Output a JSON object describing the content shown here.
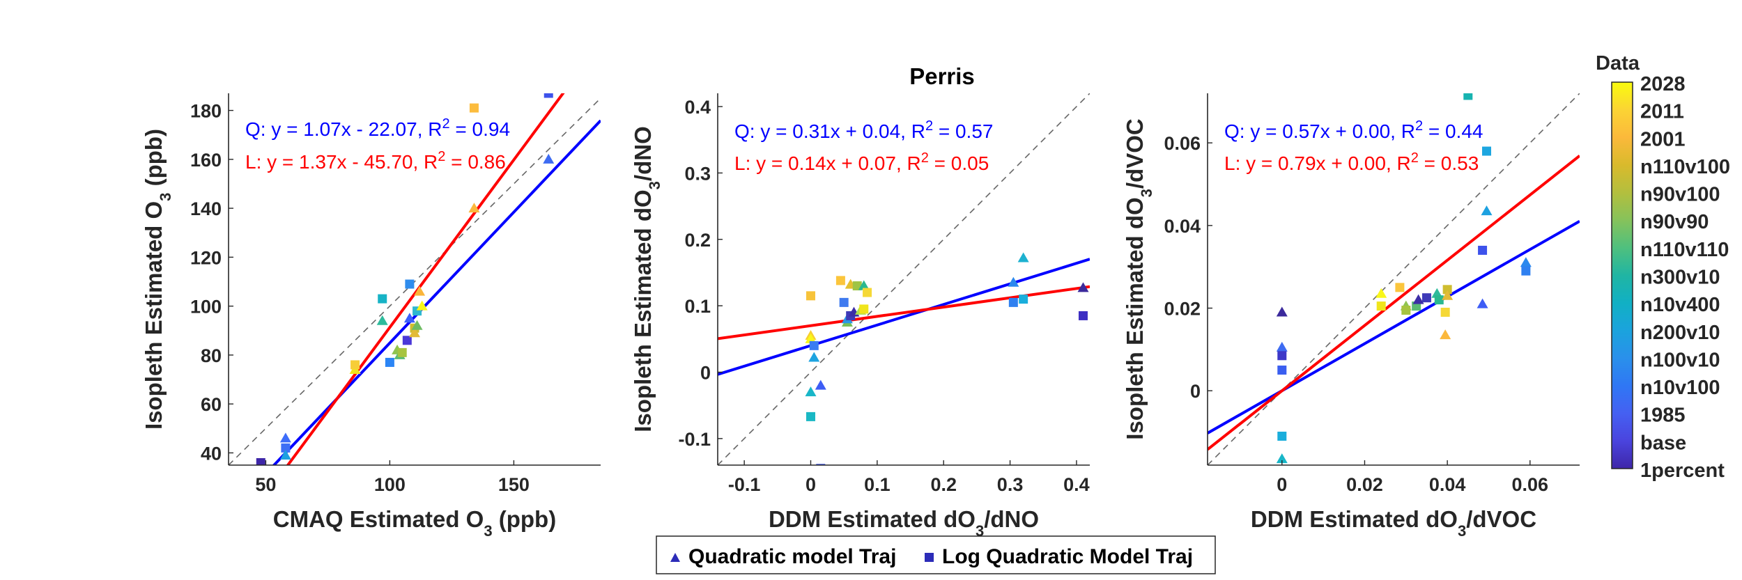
{
  "figure_title": "Perris",
  "chart_data": [
    {
      "type": "scatter",
      "xlabel": "CMAQ Estimated O_3 (ppb)",
      "ylabel": "Isopleth Estimated O_3 (ppb)",
      "xlim": [
        35,
        185
      ],
      "ylim": [
        35,
        187
      ],
      "xticks": [
        50,
        100,
        150
      ],
      "yticks": [
        40,
        60,
        80,
        100,
        120,
        140,
        160,
        180
      ],
      "xtick_labels": [
        "50",
        "100",
        "150"
      ],
      "ytick_labels": [
        "40",
        "60",
        "80",
        "100",
        "120",
        "140",
        "160",
        "180"
      ],
      "annotations": [
        {
          "prefix": "Q: y = 1.07x - 22.07, R",
          "sup": "2",
          "suffix": " = 0.94",
          "color": "#0000ff"
        },
        {
          "prefix": "L: y = 1.37x - 45.70, R",
          "sup": "2",
          "suffix": " = 0.86",
          "color": "#ff0000"
        }
      ],
      "fits": [
        {
          "label": "Q",
          "slope": 1.07,
          "intercept": -22.07,
          "color": "#0000ff"
        },
        {
          "label": "L",
          "slope": 1.37,
          "intercept": -45.7,
          "color": "#ff0000"
        }
      ],
      "points": [
        {
          "x": 48,
          "y": 36,
          "marker": "square",
          "color": "#3e26a8"
        },
        {
          "x": 58,
          "y": 46,
          "marker": "triangle",
          "color": "#3d6dfa"
        },
        {
          "x": 58,
          "y": 42,
          "marker": "square",
          "color": "#3e6ff5"
        },
        {
          "x": 58,
          "y": 39,
          "marker": "triangle",
          "color": "#1da1e0"
        },
        {
          "x": 86,
          "y": 74,
          "marker": "triangle",
          "color": "#f0e51c"
        },
        {
          "x": 86,
          "y": 76,
          "marker": "square",
          "color": "#f7cd38"
        },
        {
          "x": 97,
          "y": 103,
          "marker": "square",
          "color": "#17b3c6"
        },
        {
          "x": 97,
          "y": 94,
          "marker": "triangle",
          "color": "#2ebb9c"
        },
        {
          "x": 100,
          "y": 77,
          "marker": "square",
          "color": "#2b85f5"
        },
        {
          "x": 103,
          "y": 82,
          "marker": "triangle",
          "color": "#8fc450"
        },
        {
          "x": 104,
          "y": 80,
          "marker": "triangle",
          "color": "#5abb73"
        },
        {
          "x": 105,
          "y": 81,
          "marker": "square",
          "color": "#a7c440"
        },
        {
          "x": 107,
          "y": 86,
          "marker": "square",
          "color": "#4a38d8"
        },
        {
          "x": 108,
          "y": 109,
          "marker": "square",
          "color": "#2f8ced"
        },
        {
          "x": 108,
          "y": 95,
          "marker": "triangle",
          "color": "#3b5ffc"
        },
        {
          "x": 110,
          "y": 91,
          "marker": "square",
          "color": "#cfbd30"
        },
        {
          "x": 110,
          "y": 89,
          "marker": "triangle",
          "color": "#e2bb38"
        },
        {
          "x": 111,
          "y": 92,
          "marker": "triangle",
          "color": "#6fbc63"
        },
        {
          "x": 111,
          "y": 98,
          "marker": "square",
          "color": "#2db8d0"
        },
        {
          "x": 112,
          "y": 106,
          "marker": "triangle",
          "color": "#fab53a"
        },
        {
          "x": 113,
          "y": 100,
          "marker": "triangle",
          "color": "#f8f71a"
        },
        {
          "x": 134,
          "y": 140,
          "marker": "triangle",
          "color": "#fbb83c"
        },
        {
          "x": 134,
          "y": 181,
          "marker": "square",
          "color": "#fcbc3e"
        },
        {
          "x": 164,
          "y": 187,
          "marker": "square",
          "color": "#3d52eb"
        },
        {
          "x": 164,
          "y": 160,
          "marker": "triangle",
          "color": "#3d6bf2"
        }
      ]
    },
    {
      "type": "scatter",
      "title": "Perris",
      "xlabel": "DDM Estimated dO_3/dNO_x",
      "ylabel": "Isopleth Estimated dO_3/dNO_x",
      "xlim": [
        -0.14,
        0.42
      ],
      "ylim": [
        -0.14,
        0.42
      ],
      "xticks": [
        -0.1,
        0,
        0.1,
        0.2,
        0.3,
        0.4
      ],
      "yticks": [
        -0.1,
        0,
        0.1,
        0.2,
        0.3,
        0.4
      ],
      "xtick_labels": [
        "-0.1",
        "0",
        "0.1",
        "0.2",
        "0.3",
        "0.4"
      ],
      "ytick_labels": [
        "-0.1",
        "0",
        "0.1",
        "0.2",
        "0.3",
        "0.4"
      ],
      "annotations": [
        {
          "prefix": "Q: y = 0.31x + 0.04, R",
          "sup": "2",
          "suffix": " = 0.57",
          "color": "#0000ff"
        },
        {
          "prefix": "L: y = 0.14x + 0.07, R",
          "sup": "2",
          "suffix": " = 0.05",
          "color": "#ff0000"
        }
      ],
      "fits": [
        {
          "label": "Q",
          "slope": 0.31,
          "intercept": 0.04,
          "color": "#0000ff"
        },
        {
          "label": "L",
          "slope": 0.14,
          "intercept": 0.07,
          "color": "#ff0000"
        }
      ],
      "points": [
        {
          "x": 0.0,
          "y": 0.115,
          "marker": "square",
          "color": "#f7c33a"
        },
        {
          "x": 0.0,
          "y": 0.055,
          "marker": "triangle",
          "color": "#f8cf30"
        },
        {
          "x": 0.0,
          "y": 0.05,
          "marker": "triangle",
          "color": "#f9f71a"
        },
        {
          "x": 0.005,
          "y": 0.04,
          "marker": "square",
          "color": "#3a7cf3"
        },
        {
          "x": 0.005,
          "y": 0.022,
          "marker": "triangle",
          "color": "#1da3e0"
        },
        {
          "x": 0.0,
          "y": -0.03,
          "marker": "triangle",
          "color": "#18b6c8"
        },
        {
          "x": 0.0,
          "y": -0.067,
          "marker": "square",
          "color": "#1ab8c4"
        },
        {
          "x": 0.015,
          "y": -0.02,
          "marker": "triangle",
          "color": "#3d5df5"
        },
        {
          "x": 0.015,
          "y": -0.145,
          "marker": "square",
          "color": "#3d55ec"
        },
        {
          "x": 0.045,
          "y": 0.138,
          "marker": "square",
          "color": "#fbc53c"
        },
        {
          "x": 0.05,
          "y": 0.105,
          "marker": "square",
          "color": "#3f7aef"
        },
        {
          "x": 0.055,
          "y": 0.075,
          "marker": "triangle",
          "color": "#78c058"
        },
        {
          "x": 0.055,
          "y": 0.08,
          "marker": "triangle",
          "color": "#2b98e6"
        },
        {
          "x": 0.06,
          "y": 0.132,
          "marker": "triangle",
          "color": "#e4c030"
        },
        {
          "x": 0.06,
          "y": 0.085,
          "marker": "square",
          "color": "#3e3ab8"
        },
        {
          "x": 0.065,
          "y": 0.09,
          "marker": "triangle",
          "color": "#3d2ea6"
        },
        {
          "x": 0.07,
          "y": 0.13,
          "marker": "square",
          "color": "#9fc444"
        },
        {
          "x": 0.075,
          "y": 0.093,
          "marker": "triangle",
          "color": "#ade04c"
        },
        {
          "x": 0.08,
          "y": 0.13,
          "marker": "triangle",
          "color": "#2ab88f"
        },
        {
          "x": 0.08,
          "y": 0.095,
          "marker": "square",
          "color": "#f0e51c"
        },
        {
          "x": 0.085,
          "y": 0.12,
          "marker": "square",
          "color": "#f5d836"
        },
        {
          "x": 0.305,
          "y": 0.105,
          "marker": "square",
          "color": "#2f80f0"
        },
        {
          "x": 0.305,
          "y": 0.135,
          "marker": "triangle",
          "color": "#2b88ee"
        },
        {
          "x": 0.32,
          "y": 0.172,
          "marker": "triangle",
          "color": "#1db1d0"
        },
        {
          "x": 0.32,
          "y": 0.11,
          "marker": "square",
          "color": "#1aaedc"
        },
        {
          "x": 0.41,
          "y": 0.127,
          "marker": "triangle",
          "color": "#3b2a9c"
        },
        {
          "x": 0.41,
          "y": 0.085,
          "marker": "square",
          "color": "#3d2ec2"
        }
      ]
    },
    {
      "type": "scatter",
      "xlabel": "DDM Estimated dO_3/dVOC",
      "ylabel": "Isopleth Estimated dO_3/dVOC",
      "xlim": [
        -0.018,
        0.072
      ],
      "ylim": [
        -0.018,
        0.072
      ],
      "xticks": [
        0,
        0.02,
        0.04,
        0.06
      ],
      "yticks": [
        0,
        0.02,
        0.04,
        0.06
      ],
      "xtick_labels": [
        "0",
        "0.02",
        "0.04",
        "0.06"
      ],
      "ytick_labels": [
        "0",
        "0.02",
        "0.04",
        "0.06"
      ],
      "annotations": [
        {
          "prefix": "Q: y = 0.57x + 0.00, R",
          "sup": "2",
          "suffix": " = 0.44",
          "color": "#0000ff"
        },
        {
          "prefix": "L: y = 0.79x + 0.00, R",
          "sup": "2",
          "suffix": " = 0.53",
          "color": "#ff0000"
        }
      ],
      "fits": [
        {
          "label": "Q",
          "slope": 0.57,
          "intercept": 0.0,
          "color": "#0000ff"
        },
        {
          "label": "L",
          "slope": 0.79,
          "intercept": 0.0,
          "color": "#ff0000"
        }
      ],
      "points": [
        {
          "x": 0.0,
          "y": 0.019,
          "marker": "triangle",
          "color": "#3b2a9c"
        },
        {
          "x": 0.0,
          "y": 0.0105,
          "marker": "triangle",
          "color": "#3d6bf2"
        },
        {
          "x": 0.0,
          "y": 0.0085,
          "marker": "square",
          "color": "#3d38c8"
        },
        {
          "x": 0.0,
          "y": 0.005,
          "marker": "square",
          "color": "#3a5ef0"
        },
        {
          "x": 0.0,
          "y": -0.011,
          "marker": "square",
          "color": "#1aaedc"
        },
        {
          "x": 0.0,
          "y": -0.0165,
          "marker": "triangle",
          "color": "#18b6c8"
        },
        {
          "x": 0.024,
          "y": 0.0235,
          "marker": "triangle",
          "color": "#f9f71a"
        },
        {
          "x": 0.024,
          "y": 0.0205,
          "marker": "square",
          "color": "#f0e51c"
        },
        {
          "x": 0.0285,
          "y": 0.025,
          "marker": "square",
          "color": "#fbc53c"
        },
        {
          "x": 0.03,
          "y": 0.0205,
          "marker": "triangle",
          "color": "#8fc450"
        },
        {
          "x": 0.03,
          "y": 0.0195,
          "marker": "square",
          "color": "#a7c440"
        },
        {
          "x": 0.0325,
          "y": 0.0205,
          "marker": "square",
          "color": "#5abb73"
        },
        {
          "x": 0.033,
          "y": 0.022,
          "marker": "triangle",
          "color": "#3d2ea6"
        },
        {
          "x": 0.035,
          "y": 0.0225,
          "marker": "square",
          "color": "#3e3ab8"
        },
        {
          "x": 0.0375,
          "y": 0.0235,
          "marker": "triangle",
          "color": "#2ebb9c"
        },
        {
          "x": 0.038,
          "y": 0.022,
          "marker": "square",
          "color": "#2ab88f"
        },
        {
          "x": 0.0395,
          "y": 0.019,
          "marker": "square",
          "color": "#f5d836"
        },
        {
          "x": 0.0395,
          "y": 0.0135,
          "marker": "triangle",
          "color": "#fbb83c"
        },
        {
          "x": 0.04,
          "y": 0.0245,
          "marker": "square",
          "color": "#cfbd30"
        },
        {
          "x": 0.04,
          "y": 0.023,
          "marker": "triangle",
          "color": "#e2bb38"
        },
        {
          "x": 0.045,
          "y": 0.0715,
          "marker": "square",
          "color": "#17b3b0"
        },
        {
          "x": 0.0485,
          "y": 0.034,
          "marker": "square",
          "color": "#3d52eb"
        },
        {
          "x": 0.0485,
          "y": 0.021,
          "marker": "triangle",
          "color": "#3d5df5"
        },
        {
          "x": 0.0495,
          "y": 0.058,
          "marker": "square",
          "color": "#1da6e0"
        },
        {
          "x": 0.0495,
          "y": 0.0435,
          "marker": "triangle",
          "color": "#1da1e0"
        },
        {
          "x": 0.059,
          "y": 0.031,
          "marker": "triangle",
          "color": "#2b88ee"
        },
        {
          "x": 0.059,
          "y": 0.029,
          "marker": "square",
          "color": "#2f80f0"
        }
      ]
    }
  ],
  "colorbar": {
    "title": "Data",
    "labels": [
      "2028",
      "2011",
      "2001",
      "n110v100",
      "n90v100",
      "n90v90",
      "n110v110",
      "n300v10",
      "n10v400",
      "n200v10",
      "n100v10",
      "n10v100",
      "1985",
      "base",
      "1percent"
    ],
    "colors_top_to_bottom": [
      "#f9fb0e",
      "#fbd434",
      "#fbb93b",
      "#d9ba2c",
      "#b3bf3e",
      "#86c25b",
      "#4fc07e",
      "#20b5a3",
      "#11b0c4",
      "#1ba3dd",
      "#2a90eb",
      "#2f77f4",
      "#4560f2",
      "#4a44de",
      "#3e26a8"
    ]
  },
  "legend": {
    "placement": "bottom-center",
    "entries": [
      {
        "marker": "triangle",
        "label": "Quadratic model Traj",
        "color": "#2c2cb8"
      },
      {
        "marker": "square",
        "label": "Log Quadratic Model Traj",
        "color": "#2c2cb8"
      }
    ]
  }
}
